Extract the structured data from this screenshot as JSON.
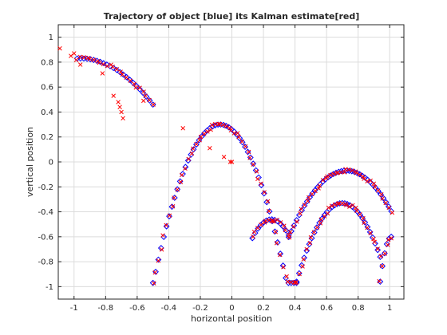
{
  "chart_data": {
    "type": "scatter",
    "title": "Trajectory of object [blue] its Kalman estimate[red]",
    "xlabel": "horizontal position",
    "ylabel": "vertical position",
    "xlim": [
      -1.1,
      1.09
    ],
    "ylim": [
      -1.1,
      1.1
    ],
    "xticks": [
      -1,
      -0.8,
      -0.6,
      -0.4,
      -0.2,
      0,
      0.2,
      0.4,
      0.6,
      0.8,
      1
    ],
    "xtick_labels": [
      "-1",
      "-0.8",
      "-0.6",
      "-0.4",
      "-0.2",
      "0",
      "0.2",
      "0.4",
      "0.6",
      "0.8",
      "1"
    ],
    "yticks": [
      -1,
      -0.8,
      -0.6,
      -0.4,
      -0.2,
      0,
      0.2,
      0.4,
      0.6,
      0.8,
      1
    ],
    "ytick_labels": [
      "-1",
      "-0.8",
      "-0.6",
      "-0.4",
      "-0.2",
      "0",
      "0.2",
      "0.4",
      "0.6",
      "0.8",
      "1"
    ],
    "grid": true,
    "legend": "none",
    "series": [
      {
        "marker": "diamond",
        "color": "#0000ff",
        "arcs": [
          {
            "x_start": -0.98,
            "x_end": -0.5,
            "apex_x": -0.96,
            "apex_y": 0.83,
            "a": -1.75,
            "y_end": -0.95,
            "points": 24
          },
          {
            "x_start": -0.5,
            "x_end": 0.41,
            "apex_x": -0.075,
            "apex_y": 0.3,
            "a": -7.1,
            "y_end": -0.97,
            "points": 54
          },
          {
            "x_start": 0.41,
            "x_end": 0.94,
            "apex_x": 0.7,
            "apex_y": -0.33,
            "a": -7.5,
            "y_end": -0.96,
            "points": 34
          },
          {
            "x_start": 0.94,
            "x_end": 1.01,
            "apex_x": 1.01,
            "apex_y": -0.6,
            "a": -75,
            "y_end": -0.96,
            "points": 6
          },
          {
            "x_start": 0.13,
            "x_end": 0.36,
            "apex_x": 0.25,
            "apex_y": -0.46,
            "a": -10.5,
            "y_end": -0.62,
            "points": 14
          },
          {
            "x_start": 0.36,
            "x_end": 1.01,
            "apex_x": 0.725,
            "apex_y": -0.07,
            "a": -4.0,
            "y_end": -0.62,
            "points": 40
          }
        ]
      },
      {
        "marker": "x",
        "color": "#ff0000",
        "follows_arcs": true,
        "extra_points": [
          {
            "x": -1.09,
            "y": 0.91
          },
          {
            "x": -1.02,
            "y": 0.85
          },
          {
            "x": -1.0,
            "y": 0.87
          },
          {
            "x": -0.96,
            "y": 0.78
          },
          {
            "x": -0.82,
            "y": 0.71
          },
          {
            "x": -0.75,
            "y": 0.53
          },
          {
            "x": -0.72,
            "y": 0.48
          },
          {
            "x": -0.71,
            "y": 0.44
          },
          {
            "x": -0.7,
            "y": 0.4
          },
          {
            "x": -0.69,
            "y": 0.35
          },
          {
            "x": -0.56,
            "y": 0.49
          },
          {
            "x": -0.31,
            "y": 0.27
          },
          {
            "x": -0.14,
            "y": 0.11
          },
          {
            "x": -0.05,
            "y": 0.04
          },
          {
            "x": -0.01,
            "y": 0.0
          },
          {
            "x": 0.0,
            "y": 0.0
          }
        ]
      }
    ]
  }
}
